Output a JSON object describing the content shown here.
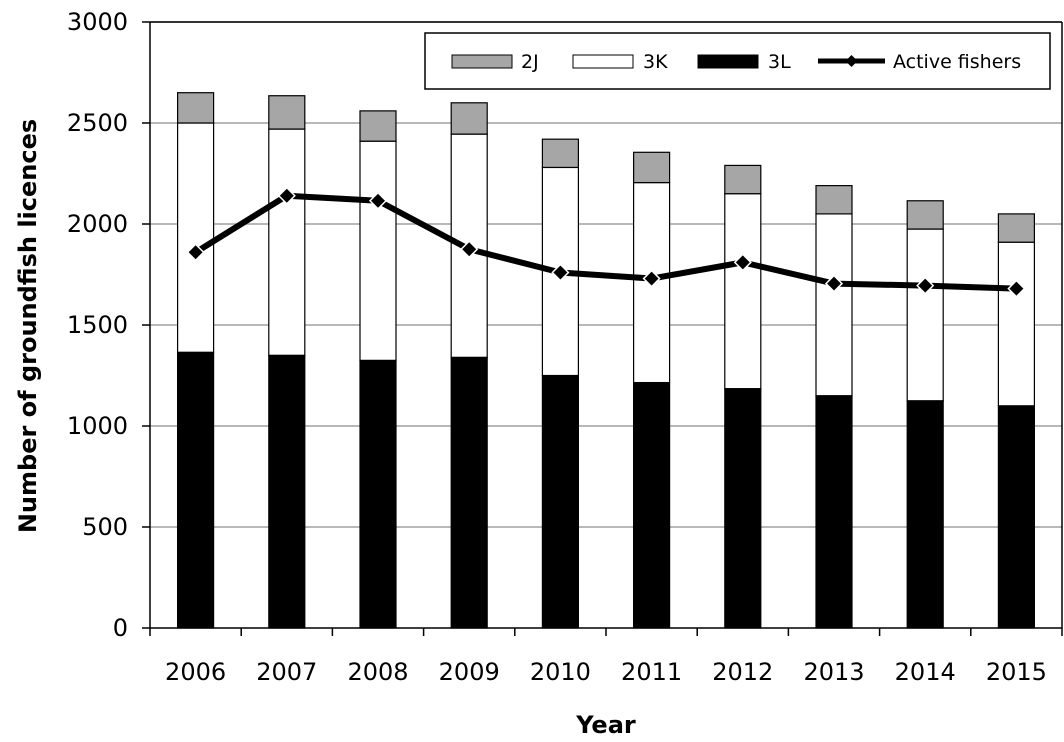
{
  "chart_data": {
    "type": "bar",
    "stacked": true,
    "categories": [
      "2006",
      "2007",
      "2008",
      "2009",
      "2010",
      "2011",
      "2012",
      "2013",
      "2014",
      "2015"
    ],
    "series": [
      {
        "name": "3L",
        "type": "bar",
        "color": "#000000",
        "values": [
          1365,
          1350,
          1325,
          1340,
          1250,
          1215,
          1185,
          1150,
          1125,
          1100
        ]
      },
      {
        "name": "3K",
        "type": "bar",
        "color": "#ffffff",
        "values": [
          1135,
          1120,
          1085,
          1105,
          1030,
          990,
          965,
          900,
          850,
          810
        ]
      },
      {
        "name": "2J",
        "type": "bar",
        "color": "#a6a6a6",
        "values": [
          150,
          165,
          150,
          155,
          140,
          150,
          140,
          140,
          140,
          140
        ]
      },
      {
        "name": "Active fishers",
        "type": "line",
        "color": "#000000",
        "values": [
          1860,
          2140,
          2115,
          1875,
          1760,
          1730,
          1810,
          1705,
          1695,
          1680
        ]
      }
    ],
    "xlabel": "Year",
    "ylabel": "Number of groundfish licences",
    "ylim": [
      0,
      3000
    ],
    "yticks": [
      0,
      500,
      1000,
      1500,
      2000,
      2500,
      3000
    ],
    "grid": true,
    "legend": {
      "placement": "top-right",
      "entries": [
        "2J",
        "3K",
        "3L",
        "Active fishers"
      ]
    }
  }
}
